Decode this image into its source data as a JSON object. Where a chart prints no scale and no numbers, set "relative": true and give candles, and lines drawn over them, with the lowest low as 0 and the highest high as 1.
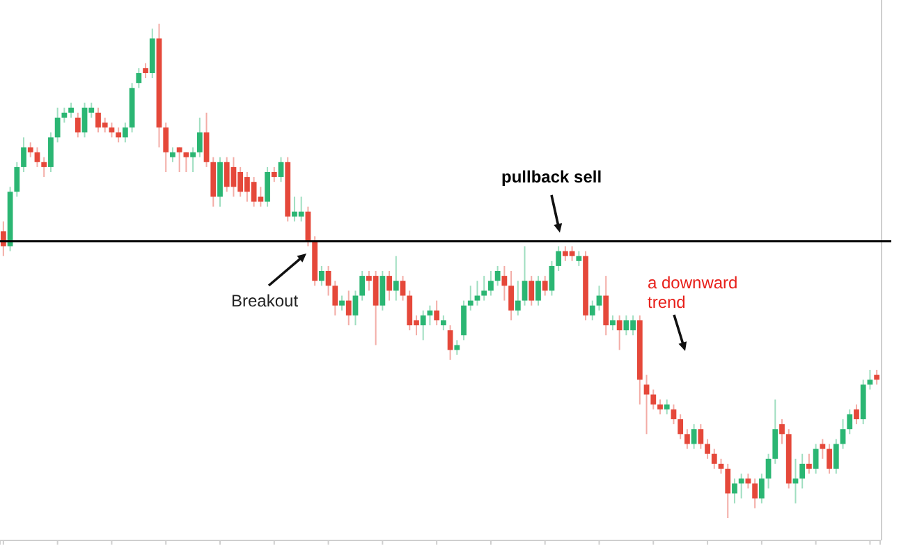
{
  "chart_data": {
    "type": "candlestick",
    "relative": true,
    "categories": [
      null,
      null,
      null,
      null,
      null,
      null,
      null,
      null,
      null,
      null,
      null,
      null,
      null,
      null,
      null,
      null,
      null,
      null,
      null,
      null,
      null,
      null,
      null,
      null,
      null,
      null,
      null,
      null,
      null,
      null,
      null,
      null,
      null,
      null,
      null,
      null,
      null,
      null,
      null,
      null,
      null,
      null,
      null,
      null,
      null,
      null,
      null,
      null,
      null,
      null,
      null,
      null,
      null,
      null,
      null,
      null,
      null,
      null,
      null,
      null,
      null,
      null,
      null,
      null,
      null,
      null,
      null,
      null,
      null,
      null,
      null,
      null,
      null,
      null,
      null,
      null,
      null,
      null,
      null,
      null,
      null,
      null,
      null,
      null,
      null,
      null,
      null,
      null,
      null,
      null,
      null,
      null,
      null,
      null,
      null,
      null,
      null,
      null,
      null,
      null,
      null,
      null,
      null,
      null,
      null,
      null,
      null,
      null,
      null,
      null,
      null,
      null,
      null,
      null,
      null,
      null,
      null,
      null,
      null,
      null,
      null,
      null,
      null,
      null,
      null,
      null,
      null,
      null,
      null,
      null
    ],
    "ohlc": [
      [
        0.58,
        0.6,
        0.53,
        0.55
      ],
      [
        0.55,
        0.67,
        0.54,
        0.66
      ],
      [
        0.66,
        0.72,
        0.65,
        0.71
      ],
      [
        0.71,
        0.77,
        0.7,
        0.75
      ],
      [
        0.75,
        0.76,
        0.73,
        0.74
      ],
      [
        0.74,
        0.75,
        0.71,
        0.72
      ],
      [
        0.72,
        0.73,
        0.69,
        0.71
      ],
      [
        0.71,
        0.78,
        0.7,
        0.77
      ],
      [
        0.77,
        0.83,
        0.76,
        0.81
      ],
      [
        0.81,
        0.83,
        0.8,
        0.82
      ],
      [
        0.82,
        0.84,
        0.81,
        0.83
      ],
      [
        0.81,
        0.82,
        0.77,
        0.78
      ],
      [
        0.78,
        0.84,
        0.77,
        0.83
      ],
      [
        0.82,
        0.84,
        0.81,
        0.83
      ],
      [
        0.82,
        0.83,
        0.78,
        0.79
      ],
      [
        0.8,
        0.81,
        0.78,
        0.79
      ],
      [
        0.79,
        0.8,
        0.77,
        0.78
      ],
      [
        0.78,
        0.79,
        0.76,
        0.77
      ],
      [
        0.77,
        0.8,
        0.76,
        0.79
      ],
      [
        0.79,
        0.88,
        0.78,
        0.87
      ],
      [
        0.88,
        0.91,
        0.87,
        0.9
      ],
      [
        0.91,
        0.92,
        0.89,
        0.9
      ],
      [
        0.9,
        0.99,
        0.89,
        0.97
      ],
      [
        0.97,
        1,
        0.75,
        0.79
      ],
      [
        0.79,
        0.8,
        0.7,
        0.74
      ],
      [
        0.73,
        0.75,
        0.72,
        0.74
      ],
      [
        0.75,
        0.75,
        0.7,
        0.74
      ],
      [
        0.74,
        0.74,
        0.7,
        0.73
      ],
      [
        0.73,
        0.75,
        0.7,
        0.74
      ],
      [
        0.74,
        0.81,
        0.73,
        0.78
      ],
      [
        0.78,
        0.82,
        0.71,
        0.72
      ],
      [
        0.72,
        0.73,
        0.63,
        0.65
      ],
      [
        0.65,
        0.73,
        0.63,
        0.72
      ],
      [
        0.72,
        0.73,
        0.66,
        0.67
      ],
      [
        0.71,
        0.73,
        0.65,
        0.67
      ],
      [
        0.7,
        0.71,
        0.65,
        0.66
      ],
      [
        0.69,
        0.7,
        0.64,
        0.66
      ],
      [
        0.68,
        0.69,
        0.63,
        0.64
      ],
      [
        0.65,
        0.67,
        0.63,
        0.64
      ],
      [
        0.64,
        0.71,
        0.63,
        0.7
      ],
      [
        0.7,
        0.71,
        0.68,
        0.69
      ],
      [
        0.69,
        0.73,
        0.68,
        0.72
      ],
      [
        0.72,
        0.73,
        0.6,
        0.61
      ],
      [
        0.61,
        0.65,
        0.6,
        0.62
      ],
      [
        0.61,
        0.65,
        0.6,
        0.62
      ],
      [
        0.62,
        0.63,
        0.55,
        0.56
      ],
      [
        0.56,
        0.57,
        0.47,
        0.48
      ],
      [
        0.48,
        0.51,
        0.47,
        0.5
      ],
      [
        0.5,
        0.51,
        0.45,
        0.47
      ],
      [
        0.47,
        0.48,
        0.41,
        0.43
      ],
      [
        0.43,
        0.45,
        0.42,
        0.44
      ],
      [
        0.44,
        0.46,
        0.39,
        0.41
      ],
      [
        0.41,
        0.46,
        0.39,
        0.45
      ],
      [
        0.45,
        0.5,
        0.44,
        0.49
      ],
      [
        0.49,
        0.5,
        0.46,
        0.48
      ],
      [
        0.49,
        0.5,
        0.35,
        0.43
      ],
      [
        0.43,
        0.5,
        0.42,
        0.49
      ],
      [
        0.49,
        0.5,
        0.44,
        0.46
      ],
      [
        0.46,
        0.53,
        0.44,
        0.48
      ],
      [
        0.48,
        0.49,
        0.44,
        0.45
      ],
      [
        0.45,
        0.46,
        0.38,
        0.39
      ],
      [
        0.4,
        0.41,
        0.37,
        0.39
      ],
      [
        0.39,
        0.42,
        0.36,
        0.41
      ],
      [
        0.41,
        0.43,
        0.39,
        0.42
      ],
      [
        0.42,
        0.44,
        0.39,
        0.4
      ],
      [
        0.39,
        0.41,
        0.38,
        0.4
      ],
      [
        0.38,
        0.39,
        0.32,
        0.34
      ],
      [
        0.34,
        0.36,
        0.33,
        0.35
      ],
      [
        0.37,
        0.44,
        0.36,
        0.43
      ],
      [
        0.43,
        0.47,
        0.42,
        0.44
      ],
      [
        0.44,
        0.48,
        0.43,
        0.45
      ],
      [
        0.45,
        0.49,
        0.44,
        0.46
      ],
      [
        0.46,
        0.5,
        0.45,
        0.48
      ],
      [
        0.48,
        0.51,
        0.47,
        0.5
      ],
      [
        0.49,
        0.51,
        0.44,
        0.47
      ],
      [
        0.47,
        0.5,
        0.4,
        0.42
      ],
      [
        0.42,
        0.48,
        0.41,
        0.44
      ],
      [
        0.44,
        0.55,
        0.43,
        0.48
      ],
      [
        0.48,
        0.49,
        0.43,
        0.44
      ],
      [
        0.44,
        0.49,
        0.43,
        0.48
      ],
      [
        0.48,
        0.49,
        0.45,
        0.46
      ],
      [
        0.46,
        0.52,
        0.45,
        0.51
      ],
      [
        0.51,
        0.55,
        0.5,
        0.54
      ],
      [
        0.54,
        0.55,
        0.52,
        0.53
      ],
      [
        0.54,
        0.55,
        0.52,
        0.53
      ],
      [
        0.52,
        0.54,
        0.51,
        0.53
      ],
      [
        0.53,
        0.54,
        0.4,
        0.41
      ],
      [
        0.41,
        0.44,
        0.4,
        0.43
      ],
      [
        0.43,
        0.47,
        0.42,
        0.45
      ],
      [
        0.45,
        0.49,
        0.37,
        0.39
      ],
      [
        0.39,
        0.41,
        0.38,
        0.4
      ],
      [
        0.4,
        0.41,
        0.34,
        0.38
      ],
      [
        0.38,
        0.41,
        0.37,
        0.4
      ],
      [
        0.38,
        0.41,
        0.37,
        0.4
      ],
      [
        0.4,
        0.41,
        0.23,
        0.28
      ],
      [
        0.27,
        0.29,
        0.17,
        0.25
      ],
      [
        0.25,
        0.26,
        0.22,
        0.23
      ],
      [
        0.23,
        0.24,
        0.21,
        0.22
      ],
      [
        0.22,
        0.24,
        0.21,
        0.23
      ],
      [
        0.22,
        0.23,
        0.19,
        0.2
      ],
      [
        0.2,
        0.21,
        0.16,
        0.17
      ],
      [
        0.17,
        0.18,
        0.14,
        0.15
      ],
      [
        0.15,
        0.19,
        0.14,
        0.18
      ],
      [
        0.18,
        0.19,
        0.14,
        0.15
      ],
      [
        0.15,
        0.16,
        0.12,
        0.13
      ],
      [
        0.13,
        0.14,
        0.1,
        0.11
      ],
      [
        0.11,
        0.12,
        0.09,
        0.1
      ],
      [
        0.1,
        0.11,
        0,
        0.05
      ],
      [
        0.05,
        0.08,
        0.03,
        0.07
      ],
      [
        0.07,
        0.09,
        0.04,
        0.08
      ],
      [
        0.08,
        0.09,
        0.06,
        0.07
      ],
      [
        0.07,
        0.08,
        0.02,
        0.04
      ],
      [
        0.04,
        0.09,
        0.03,
        0.08
      ],
      [
        0.08,
        0.13,
        0.06,
        0.12
      ],
      [
        0.12,
        0.24,
        0.11,
        0.18
      ],
      [
        0.19,
        0.2,
        0.15,
        0.17
      ],
      [
        0.17,
        0.18,
        0.06,
        0.07
      ],
      [
        0.07,
        0.12,
        0.03,
        0.08
      ],
      [
        0.08,
        0.13,
        0.06,
        0.11
      ],
      [
        0.11,
        0.13,
        0.09,
        0.1
      ],
      [
        0.1,
        0.15,
        0.09,
        0.14
      ],
      [
        0.15,
        0.16,
        0.12,
        0.14
      ],
      [
        0.14,
        0.15,
        0.09,
        0.1
      ],
      [
        0.1,
        0.16,
        0.09,
        0.15
      ],
      [
        0.15,
        0.2,
        0.14,
        0.18
      ],
      [
        0.18,
        0.22,
        0.17,
        0.21
      ],
      [
        0.22,
        0.23,
        0.19,
        0.2
      ],
      [
        0.2,
        0.28,
        0.19,
        0.27
      ],
      [
        0.27,
        0.3,
        0.26,
        0.28
      ],
      [
        0.29,
        0.3,
        0.27,
        0.28
      ]
    ],
    "ref_lines": [
      {
        "axis": "y",
        "value": 0.56,
        "color": "#000000",
        "line_style": "solid"
      }
    ],
    "annotations": [
      "Breakout",
      "pullback sell",
      "a downward trend"
    ]
  }
}
